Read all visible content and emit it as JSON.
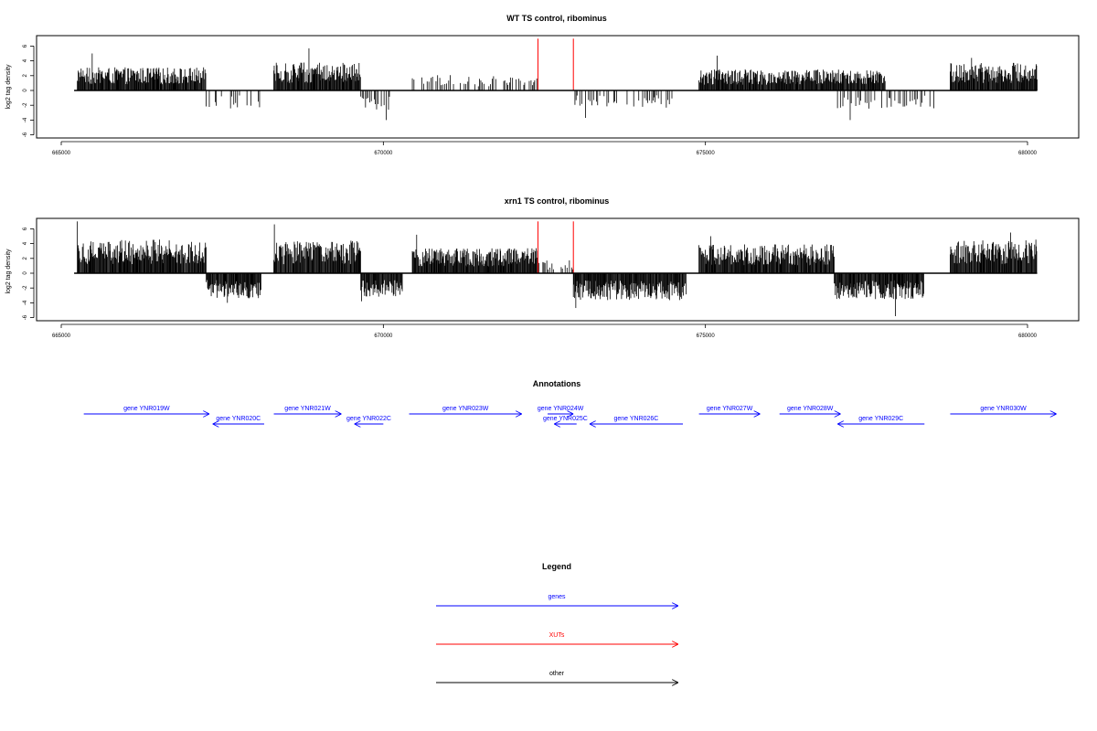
{
  "chart_data": [
    {
      "type": "bar",
      "title": "WT TS control, ribominus",
      "ylabel": "log2 tag density",
      "xlabel": "",
      "xlim": [
        665000,
        680000
      ],
      "ylim": [
        -6,
        6
      ],
      "x_ticks": [
        665000,
        670000,
        675000,
        680000
      ],
      "y_ticks": [
        -6,
        -4,
        -2,
        0,
        2,
        4,
        6
      ],
      "baseline_range": [
        665200,
        680150
      ],
      "xut_markers": [
        672400,
        672950
      ],
      "bar_color": "#000000",
      "xut_color": "#ff0000",
      "series": [
        {
          "strand": "+",
          "x_range": [
            665250,
            667250
          ],
          "typical": 2.4,
          "max": 5.0
        },
        {
          "strand": "-",
          "x_range": [
            667250,
            668100
          ],
          "typical": -1.9,
          "max": -3.0
        },
        {
          "strand": "+",
          "x_range": [
            668300,
            669650
          ],
          "typical": 2.9,
          "max": 5.7
        },
        {
          "strand": "-",
          "x_range": [
            669650,
            670100
          ],
          "typical": -2.0,
          "max": -4.0
        },
        {
          "strand": "+",
          "x_range": [
            670450,
            672400
          ],
          "typical": 1.6,
          "max": 3.2
        },
        {
          "strand": "-",
          "x_range": [
            672950,
            674500
          ],
          "typical": -1.8,
          "max": -3.7
        },
        {
          "strand": "+",
          "x_range": [
            674900,
            677800
          ],
          "typical": 2.2,
          "max": 4.7
        },
        {
          "strand": "-",
          "x_range": [
            677050,
            678550
          ],
          "typical": -1.9,
          "max": -4.0
        },
        {
          "strand": "+",
          "x_range": [
            678800,
            680150
          ],
          "typical": 2.9,
          "max": 4.4
        }
      ]
    },
    {
      "type": "bar",
      "title": "xrn1 TS control, ribominus",
      "ylabel": "log2 tag density",
      "xlabel": "",
      "xlim": [
        665000,
        680000
      ],
      "ylim": [
        -6,
        6
      ],
      "x_ticks": [
        665000,
        670000,
        675000,
        680000
      ],
      "y_ticks": [
        -6,
        -4,
        -2,
        0,
        2,
        4,
        6
      ],
      "baseline_range": [
        665200,
        680150
      ],
      "xut_markers": [
        672400,
        672950
      ],
      "bar_color": "#000000",
      "xut_color": "#ff0000",
      "series": [
        {
          "strand": "+",
          "x_range": [
            665250,
            667250
          ],
          "typical": 3.5,
          "max": 7.0
        },
        {
          "strand": "-",
          "x_range": [
            667250,
            668100
          ],
          "typical": -2.6,
          "max": -4.0
        },
        {
          "strand": "+",
          "x_range": [
            668300,
            669650
          ],
          "typical": 3.4,
          "max": 6.6
        },
        {
          "strand": "-",
          "x_range": [
            669650,
            670300
          ],
          "typical": -2.5,
          "max": -3.8
        },
        {
          "strand": "+",
          "x_range": [
            670450,
            672400
          ],
          "typical": 2.6,
          "max": 5.2
        },
        {
          "strand": "+",
          "x_range": [
            672400,
            672950
          ],
          "typical": 1.4,
          "max": 2.0
        },
        {
          "strand": "-",
          "x_range": [
            672950,
            674700
          ],
          "typical": -2.8,
          "max": -4.7
        },
        {
          "strand": "+",
          "x_range": [
            674900,
            677000
          ],
          "typical": 3.0,
          "max": 5.0
        },
        {
          "strand": "-",
          "x_range": [
            677000,
            678400
          ],
          "typical": -2.7,
          "max": -5.8
        },
        {
          "strand": "+",
          "x_range": [
            678800,
            680150
          ],
          "typical": 3.5,
          "max": 5.5
        }
      ]
    }
  ],
  "annotations": {
    "title": "Annotations",
    "genes": [
      {
        "name": "gene YNR019W",
        "start": 665350,
        "end": 667300,
        "strand": "+",
        "row": 0
      },
      {
        "name": "gene YNR020C",
        "start": 667350,
        "end": 668150,
        "strand": "-",
        "row": 1
      },
      {
        "name": "gene YNR021W",
        "start": 668300,
        "end": 669350,
        "strand": "+",
        "row": 0
      },
      {
        "name": "gene YNR022C",
        "start": 669550,
        "end": 670000,
        "strand": "-",
        "row": 1
      },
      {
        "name": "gene YNR023W",
        "start": 670400,
        "end": 672150,
        "strand": "+",
        "row": 0
      },
      {
        "name": "gene YNR024W",
        "start": 672550,
        "end": 672950,
        "strand": "+",
        "row": 0
      },
      {
        "name": "gene YNR025C",
        "start": 672650,
        "end": 673000,
        "strand": "-",
        "row": 1
      },
      {
        "name": "gene YNR026C",
        "start": 673200,
        "end": 674650,
        "strand": "-",
        "row": 1
      },
      {
        "name": "gene YNR027W",
        "start": 674900,
        "end": 675850,
        "strand": "+",
        "row": 0
      },
      {
        "name": "gene YNR028W",
        "start": 676150,
        "end": 677100,
        "strand": "+",
        "row": 0
      },
      {
        "name": "gene YNR029C",
        "start": 677050,
        "end": 678400,
        "strand": "-",
        "row": 1
      },
      {
        "name": "gene YNR030W",
        "start": 678800,
        "end": 680450,
        "strand": "+",
        "row": 0
      }
    ]
  },
  "legend": {
    "title": "Legend",
    "items": [
      {
        "label": "genes",
        "color": "#0000ff"
      },
      {
        "label": "XUTs",
        "color": "#ff0000"
      },
      {
        "label": "other",
        "color": "#000000"
      }
    ]
  }
}
